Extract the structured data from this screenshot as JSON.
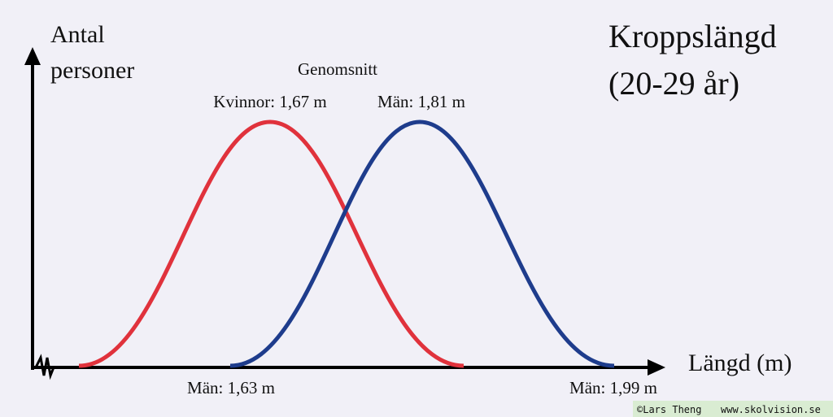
{
  "title": {
    "line1": "Kroppslängd",
    "line2": "(20-29 år)"
  },
  "y_axis_label": {
    "line1": "Antal",
    "line2": "personer"
  },
  "x_axis_label": "Längd (m)",
  "averages": {
    "heading": "Genomsnitt",
    "women": "Kvinnor: 1,67 m",
    "men": "Män: 1,81 m"
  },
  "range_labels": {
    "min": "Män: 1,63 m",
    "max": "Män: 1,99 m"
  },
  "footer": {
    "author": "©Lars Theng",
    "site": "www.skolvision.se"
  }
}
